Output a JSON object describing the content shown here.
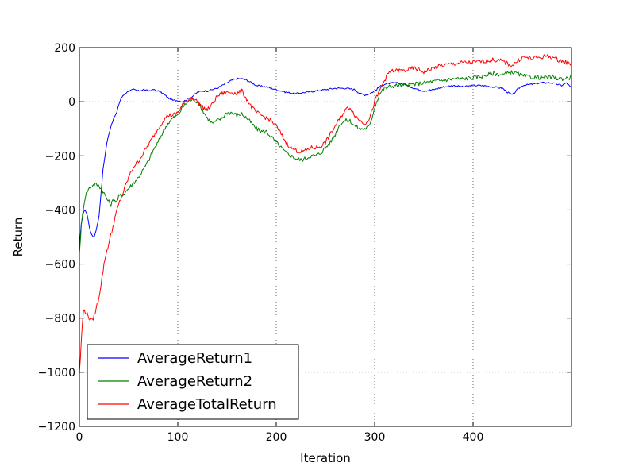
{
  "chart_data": {
    "type": "line",
    "title": "",
    "xlabel": "Iteration",
    "ylabel": "Return",
    "xlim": [
      0,
      500
    ],
    "ylim": [
      -1200,
      200
    ],
    "xticks": [
      0,
      100,
      200,
      300,
      400
    ],
    "yticks": [
      -1200,
      -1000,
      -800,
      -600,
      -400,
      -200,
      0,
      200
    ],
    "xtick_labels": [
      "0",
      "100",
      "200",
      "300",
      "400"
    ],
    "ytick_labels": [
      "−1200",
      "−1000",
      "−800",
      "−600",
      "−400",
      "−200",
      "0",
      "200"
    ],
    "grid": true,
    "legend_position": "lower-left",
    "series": [
      {
        "name": "AverageReturn1",
        "color": "#0000ff",
        "x": [
          0,
          2,
          4,
          6,
          8,
          10,
          12,
          15,
          18,
          20,
          22,
          24,
          26,
          28,
          30,
          32,
          35,
          38,
          40,
          42,
          45,
          48,
          50,
          55,
          60,
          65,
          70,
          75,
          80,
          85,
          90,
          95,
          100,
          105,
          110,
          115,
          120,
          125,
          130,
          135,
          140,
          145,
          150,
          155,
          160,
          165,
          170,
          175,
          180,
          190,
          200,
          210,
          220,
          230,
          240,
          250,
          260,
          270,
          280,
          285,
          290,
          295,
          300,
          305,
          310,
          320,
          330,
          340,
          350,
          360,
          370,
          380,
          390,
          400,
          410,
          420,
          430,
          435,
          440,
          445,
          450,
          460,
          470,
          480,
          490,
          495,
          500
        ],
        "y": [
          -540,
          -450,
          -410,
          -400,
          -420,
          -460,
          -490,
          -500,
          -460,
          -420,
          -340,
          -250,
          -200,
          -150,
          -120,
          -90,
          -60,
          -40,
          -10,
          10,
          25,
          35,
          40,
          45,
          40,
          45,
          40,
          45,
          40,
          30,
          15,
          5,
          5,
          0,
          10,
          20,
          35,
          40,
          40,
          45,
          50,
          60,
          70,
          80,
          85,
          85,
          80,
          70,
          60,
          55,
          45,
          35,
          30,
          35,
          40,
          45,
          50,
          50,
          45,
          30,
          25,
          30,
          40,
          55,
          65,
          70,
          65,
          50,
          40,
          45,
          55,
          60,
          55,
          60,
          60,
          55,
          50,
          35,
          25,
          45,
          60,
          65,
          70,
          70,
          60,
          70,
          50
        ]
      },
      {
        "name": "AverageReturn2",
        "color": "#008000",
        "x": [
          0,
          2,
          4,
          6,
          8,
          10,
          13,
          16,
          20,
          24,
          28,
          30,
          32,
          35,
          38,
          40,
          45,
          50,
          55,
          60,
          65,
          70,
          75,
          80,
          85,
          90,
          95,
          100,
          105,
          110,
          115,
          120,
          125,
          130,
          135,
          140,
          145,
          150,
          155,
          160,
          165,
          170,
          175,
          180,
          185,
          190,
          195,
          200,
          205,
          210,
          215,
          220,
          225,
          230,
          235,
          240,
          245,
          250,
          255,
          260,
          265,
          270,
          275,
          280,
          285,
          290,
          295,
          300,
          305,
          310,
          315,
          320,
          330,
          340,
          350,
          360,
          370,
          380,
          390,
          400,
          410,
          420,
          430,
          440,
          445,
          450,
          460,
          470,
          480,
          490,
          500
        ],
        "y": [
          -560,
          -460,
          -390,
          -350,
          -330,
          -320,
          -310,
          -305,
          -310,
          -330,
          -360,
          -370,
          -380,
          -360,
          -370,
          -350,
          -340,
          -320,
          -300,
          -280,
          -250,
          -220,
          -180,
          -150,
          -110,
          -80,
          -60,
          -50,
          -20,
          0,
          10,
          0,
          -30,
          -60,
          -80,
          -70,
          -60,
          -40,
          -40,
          -50,
          -45,
          -60,
          -80,
          -100,
          -110,
          -110,
          -130,
          -150,
          -170,
          -190,
          -200,
          -210,
          -215,
          -210,
          -200,
          -200,
          -190,
          -170,
          -150,
          -120,
          -80,
          -70,
          -70,
          -90,
          -100,
          -100,
          -90,
          -20,
          30,
          50,
          55,
          60,
          60,
          65,
          70,
          75,
          80,
          85,
          85,
          90,
          95,
          105,
          100,
          110,
          105,
          95,
          90,
          90,
          90,
          85,
          90
        ]
      },
      {
        "name": "AverageTotalReturn",
        "color": "#ff0000",
        "x": [
          0,
          1,
          2,
          3,
          4,
          5,
          7,
          10,
          13,
          16,
          20,
          23,
          26,
          30,
          33,
          36,
          40,
          45,
          50,
          55,
          60,
          65,
          70,
          75,
          80,
          85,
          90,
          95,
          100,
          105,
          110,
          115,
          120,
          125,
          130,
          135,
          140,
          145,
          150,
          155,
          160,
          165,
          170,
          175,
          180,
          185,
          190,
          195,
          200,
          205,
          210,
          215,
          220,
          225,
          230,
          235,
          240,
          245,
          250,
          255,
          260,
          265,
          270,
          275,
          280,
          285,
          290,
          295,
          300,
          305,
          310,
          315,
          320,
          330,
          340,
          350,
          360,
          370,
          380,
          390,
          400,
          410,
          420,
          430,
          435,
          440,
          450,
          460,
          470,
          475,
          480,
          490,
          495,
          500
        ],
        "y": [
          -1000,
          -950,
          -880,
          -820,
          -780,
          -770,
          -780,
          -800,
          -810,
          -780,
          -720,
          -650,
          -580,
          -520,
          -480,
          -430,
          -380,
          -330,
          -280,
          -240,
          -220,
          -190,
          -160,
          -130,
          -100,
          -70,
          -50,
          -50,
          -40,
          -10,
          5,
          15,
          0,
          -20,
          -30,
          -10,
          20,
          30,
          35,
          35,
          30,
          40,
          10,
          -20,
          -40,
          -50,
          -60,
          -70,
          -90,
          -120,
          -150,
          -170,
          -180,
          -185,
          -180,
          -170,
          -170,
          -165,
          -150,
          -120,
          -90,
          -60,
          -30,
          -20,
          -50,
          -70,
          -80,
          -60,
          0,
          40,
          80,
          110,
          115,
          115,
          125,
          110,
          125,
          135,
          140,
          145,
          145,
          150,
          155,
          150,
          140,
          135,
          165,
          160,
          165,
          170,
          165,
          150,
          145,
          140
        ]
      }
    ]
  }
}
